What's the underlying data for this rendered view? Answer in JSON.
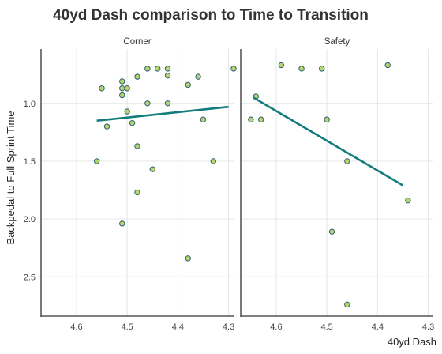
{
  "chart_data": {
    "type": "scatter",
    "title": "40yd Dash comparison to Time to Transition",
    "xlabel": "40yd Dash",
    "ylabel": "Backpedal to Full Sprint Time",
    "x_reversed": true,
    "y_reversed": true,
    "xlim": [
      4.67,
      4.29
    ],
    "x_ticks": [
      4.6,
      4.5,
      4.4,
      4.3
    ],
    "x_tick_labels": [
      "4.6",
      "4.5",
      "4.4",
      "4.3"
    ],
    "y_ticks": [
      1.0,
      1.5,
      2.0,
      2.5
    ],
    "y_tick_labels": [
      "1.0",
      "1.5",
      "2.0",
      "2.5"
    ],
    "ylim": [
      0.53,
      2.84
    ],
    "grid": true,
    "colors": {
      "point_fill": "#b5d66e",
      "point_stroke": "#2f5f73",
      "trend_line": "#127b7e",
      "grid": "#e6e6e6",
      "axis": "#333333"
    },
    "panels": [
      {
        "name": "Corner",
        "points": [
          {
            "x": 4.55,
            "y": 0.87
          },
          {
            "x": 4.54,
            "y": 1.2
          },
          {
            "x": 4.51,
            "y": 0.81
          },
          {
            "x": 4.51,
            "y": 0.87
          },
          {
            "x": 4.51,
            "y": 0.93
          },
          {
            "x": 4.5,
            "y": 0.87
          },
          {
            "x": 4.5,
            "y": 1.07
          },
          {
            "x": 4.49,
            "y": 1.17
          },
          {
            "x": 4.48,
            "y": 0.77
          },
          {
            "x": 4.48,
            "y": 1.37
          },
          {
            "x": 4.48,
            "y": 1.77
          },
          {
            "x": 4.46,
            "y": 0.7
          },
          {
            "x": 4.46,
            "y": 1.0
          },
          {
            "x": 4.44,
            "y": 0.7
          },
          {
            "x": 4.42,
            "y": 0.7
          },
          {
            "x": 4.42,
            "y": 0.76
          },
          {
            "x": 4.42,
            "y": 1.0
          },
          {
            "x": 4.38,
            "y": 0.84
          },
          {
            "x": 4.36,
            "y": 0.77
          },
          {
            "x": 4.35,
            "y": 1.14
          },
          {
            "x": 4.33,
            "y": 1.5
          },
          {
            "x": 4.29,
            "y": 0.7
          },
          {
            "x": 4.56,
            "y": 1.5
          },
          {
            "x": 4.45,
            "y": 1.57
          },
          {
            "x": 4.51,
            "y": 2.04
          },
          {
            "x": 4.38,
            "y": 2.34
          }
        ],
        "trend": {
          "x": [
            4.56,
            4.3
          ],
          "y": [
            1.15,
            1.03
          ]
        }
      },
      {
        "name": "Safety",
        "points": [
          {
            "x": 4.65,
            "y": 1.14
          },
          {
            "x": 4.64,
            "y": 0.94
          },
          {
            "x": 4.63,
            "y": 1.14
          },
          {
            "x": 4.59,
            "y": 0.67
          },
          {
            "x": 4.55,
            "y": 0.7
          },
          {
            "x": 4.51,
            "y": 0.7
          },
          {
            "x": 4.5,
            "y": 1.14
          },
          {
            "x": 4.49,
            "y": 2.11
          },
          {
            "x": 4.46,
            "y": 1.5
          },
          {
            "x": 4.46,
            "y": 2.74
          },
          {
            "x": 4.38,
            "y": 0.67
          },
          {
            "x": 4.34,
            "y": 1.84
          }
        ],
        "trend": {
          "x": [
            4.645,
            4.35
          ],
          "y": [
            0.95,
            1.71
          ]
        }
      }
    ]
  }
}
